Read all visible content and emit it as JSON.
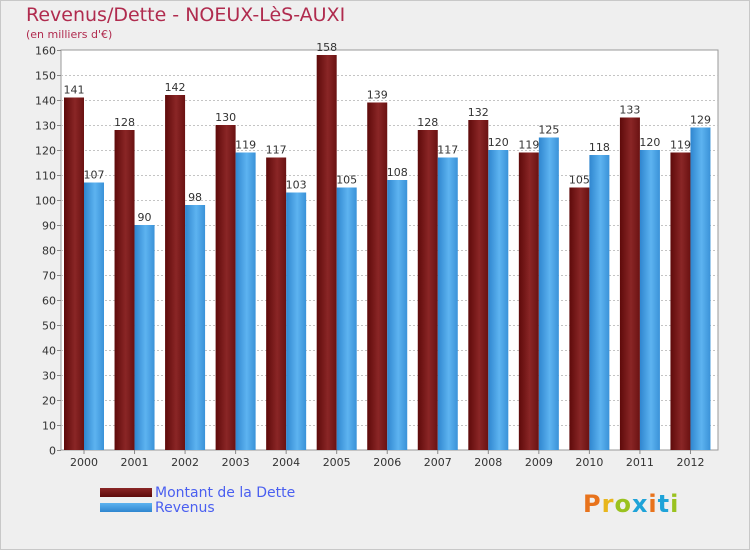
{
  "chart_data": {
    "type": "bar",
    "title": "Revenus/Dette - NOEUX-LèS-AUXI",
    "subtitle": "(en milliers d'€)",
    "categories": [
      "2000",
      "2001",
      "2002",
      "2003",
      "2004",
      "2005",
      "2006",
      "2007",
      "2008",
      "2009",
      "2010",
      "2011",
      "2012"
    ],
    "series": [
      {
        "name": "Montant de la Dette",
        "color": "#7f2020",
        "values": [
          141,
          128,
          142,
          130,
          117,
          158,
          139,
          128,
          132,
          119,
          105,
          133,
          119
        ]
      },
      {
        "name": "Revenus",
        "color": "#4aa3e8",
        "values": [
          107,
          90,
          98,
          119,
          103,
          105,
          108,
          117,
          120,
          125,
          118,
          120,
          129
        ]
      }
    ],
    "ylim": [
      0,
      160
    ],
    "ytick_step": 10,
    "grid": true,
    "legend_position": "bottom-left"
  },
  "logo": {
    "text": "Proxiti",
    "colors": [
      "#e8731c",
      "#e8b61c",
      "#9ac21f",
      "#1fa3d8",
      "#e8731c",
      "#1fa3d8",
      "#9ac21f"
    ]
  }
}
